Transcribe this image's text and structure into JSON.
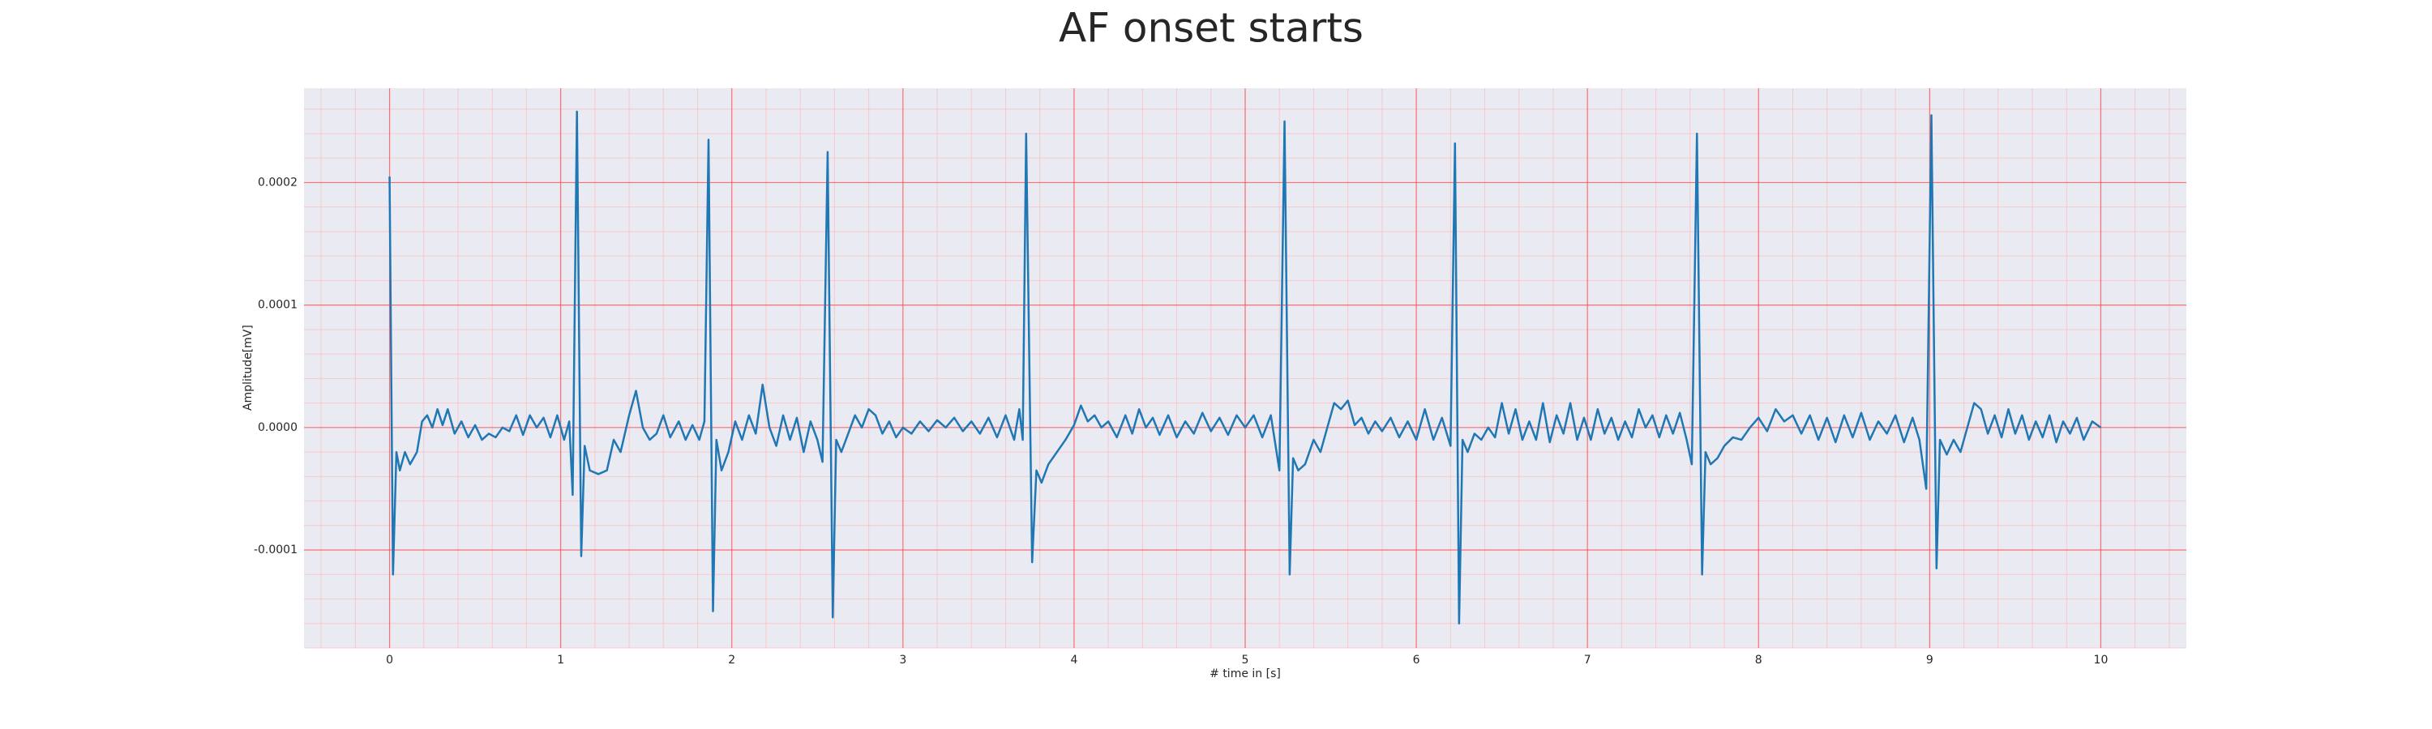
{
  "chart_data": {
    "type": "line",
    "title": "AF onset starts",
    "xlabel": "# time in [s]",
    "ylabel": "Amplitude[mV]",
    "color": "#1f77b4",
    "grid": true,
    "minor_grid": true,
    "xlim": [
      -0.5,
      10.5
    ],
    "xticks": [
      0,
      1,
      2,
      3,
      4,
      5,
      6,
      7,
      8,
      9,
      10
    ],
    "ylim": [
      -0.00018,
      0.000277
    ],
    "yticks": [
      {
        "value": -0.0001,
        "label": "-0.0001"
      },
      {
        "value": 0,
        "label": "0.0000"
      },
      {
        "value": 0.0001,
        "label": "0.0001"
      },
      {
        "value": 0.0002,
        "label": "0.0002"
      }
    ],
    "x": [
      0.0,
      0.02,
      0.04,
      0.06,
      0.09,
      0.12,
      0.16,
      0.19,
      0.22,
      0.25,
      0.28,
      0.31,
      0.34,
      0.38,
      0.42,
      0.46,
      0.5,
      0.54,
      0.58,
      0.62,
      0.66,
      0.7,
      0.74,
      0.78,
      0.82,
      0.86,
      0.9,
      0.94,
      0.98,
      1.02,
      1.05,
      1.07,
      1.095,
      1.12,
      1.14,
      1.17,
      1.22,
      1.27,
      1.31,
      1.35,
      1.4,
      1.44,
      1.48,
      1.52,
      1.56,
      1.6,
      1.64,
      1.69,
      1.73,
      1.77,
      1.81,
      1.84,
      1.864,
      1.89,
      1.91,
      1.94,
      1.98,
      2.02,
      2.06,
      2.1,
      2.14,
      2.18,
      2.22,
      2.26,
      2.3,
      2.34,
      2.38,
      2.42,
      2.46,
      2.5,
      2.53,
      2.56,
      2.59,
      2.61,
      2.64,
      2.68,
      2.72,
      2.76,
      2.8,
      2.84,
      2.88,
      2.92,
      2.96,
      3.0,
      3.05,
      3.1,
      3.15,
      3.2,
      3.25,
      3.3,
      3.35,
      3.4,
      3.45,
      3.5,
      3.55,
      3.6,
      3.65,
      3.68,
      3.7,
      3.72,
      3.755,
      3.78,
      3.81,
      3.85,
      3.9,
      3.95,
      4.0,
      4.04,
      4.08,
      4.12,
      4.16,
      4.2,
      4.25,
      4.3,
      4.34,
      4.38,
      4.42,
      4.46,
      4.5,
      4.55,
      4.6,
      4.65,
      4.7,
      4.75,
      4.8,
      4.85,
      4.9,
      4.95,
      5.0,
      5.05,
      5.1,
      5.15,
      5.2,
      5.23,
      5.26,
      5.28,
      5.31,
      5.35,
      5.4,
      5.44,
      5.48,
      5.52,
      5.56,
      5.6,
      5.64,
      5.68,
      5.72,
      5.76,
      5.8,
      5.85,
      5.9,
      5.95,
      6.0,
      6.05,
      6.1,
      6.15,
      6.2,
      6.226,
      6.25,
      6.27,
      6.3,
      6.34,
      6.38,
      6.42,
      6.46,
      6.5,
      6.54,
      6.58,
      6.62,
      6.66,
      6.7,
      6.74,
      6.78,
      6.82,
      6.86,
      6.9,
      6.94,
      6.98,
      7.02,
      7.06,
      7.1,
      7.14,
      7.18,
      7.22,
      7.26,
      7.3,
      7.34,
      7.38,
      7.42,
      7.46,
      7.5,
      7.54,
      7.58,
      7.61,
      7.64,
      7.67,
      7.69,
      7.72,
      7.76,
      7.8,
      7.85,
      7.9,
      7.95,
      8.0,
      8.05,
      8.1,
      8.15,
      8.2,
      8.25,
      8.3,
      8.35,
      8.4,
      8.45,
      8.5,
      8.55,
      8.6,
      8.65,
      8.7,
      8.75,
      8.8,
      8.85,
      8.9,
      8.94,
      8.98,
      9.01,
      9.04,
      9.06,
      9.1,
      9.14,
      9.18,
      9.22,
      9.26,
      9.3,
      9.34,
      9.38,
      9.42,
      9.46,
      9.5,
      9.54,
      9.58,
      9.62,
      9.66,
      9.7,
      9.74,
      9.78,
      9.82,
      9.86,
      9.9,
      9.95,
      10.0
    ],
    "values": [
      0.000205,
      -0.00012,
      -2e-05,
      -3.5e-05,
      -2e-05,
      -3e-05,
      -2e-05,
      5e-06,
      1e-05,
      0,
      1.5e-05,
      2e-06,
      1.5e-05,
      -5e-06,
      5e-06,
      -8e-06,
      2e-06,
      -1e-05,
      -5e-06,
      -8e-06,
      0,
      -3e-06,
      1e-05,
      -6e-06,
      1e-05,
      0,
      8e-06,
      -8e-06,
      1e-05,
      -1e-05,
      5e-06,
      -5.5e-05,
      0.000258,
      -0.000105,
      -1.5e-05,
      -3.5e-05,
      -3.8e-05,
      -3.5e-05,
      -1e-05,
      -2e-05,
      1e-05,
      3e-05,
      0,
      -1e-05,
      -5e-06,
      1e-05,
      -8e-06,
      5e-06,
      -1e-05,
      2e-06,
      -1e-05,
      5e-06,
      0.000235,
      -0.00015,
      -1e-05,
      -3.5e-05,
      -2e-05,
      5e-06,
      -1e-05,
      1e-05,
      -5e-06,
      3.5e-05,
      0,
      -1.5e-05,
      1e-05,
      -1e-05,
      8e-06,
      -2e-05,
      5e-06,
      -1e-05,
      -2.8e-05,
      0.000225,
      -0.000155,
      -1e-05,
      -2e-05,
      -5e-06,
      1e-05,
      0,
      1.5e-05,
      1e-05,
      -5e-06,
      5e-06,
      -8e-06,
      0,
      -5e-06,
      5e-06,
      -3e-06,
      6e-06,
      0,
      8e-06,
      -3e-06,
      5e-06,
      -5e-06,
      8e-06,
      -8e-06,
      1e-05,
      -1e-05,
      1.5e-05,
      -1e-05,
      0.00024,
      -0.00011,
      -3.5e-05,
      -4.5e-05,
      -3e-05,
      -2e-05,
      -1e-05,
      2e-06,
      1.8e-05,
      5e-06,
      1e-05,
      0,
      5e-06,
      -8e-06,
      1e-05,
      -5e-06,
      1.5e-05,
      0,
      8e-06,
      -6e-06,
      1e-05,
      -8e-06,
      5e-06,
      -5e-06,
      1.2e-05,
      -3e-06,
      8e-06,
      -6e-06,
      1e-05,
      0,
      1e-05,
      -8e-06,
      1e-05,
      -3.5e-05,
      0.00025,
      -0.00012,
      -2.5e-05,
      -3.5e-05,
      -3e-05,
      -1e-05,
      -2e-05,
      0,
      2e-05,
      1.5e-05,
      2.2e-05,
      2e-06,
      8e-06,
      -5e-06,
      5e-06,
      -3e-06,
      8e-06,
      -8e-06,
      5e-06,
      -1e-05,
      1.5e-05,
      -1e-05,
      8e-06,
      -1.5e-05,
      0.000232,
      -0.00016,
      -1e-05,
      -2e-05,
      -5e-06,
      -1e-05,
      0,
      -8e-06,
      2e-05,
      -5e-06,
      1.5e-05,
      -1e-05,
      5e-06,
      -1e-05,
      2e-05,
      -1.2e-05,
      1e-05,
      -5e-06,
      2e-05,
      -1e-05,
      8e-06,
      -1e-05,
      1.5e-05,
      -5e-06,
      8e-06,
      -1e-05,
      5e-06,
      -8e-06,
      1.5e-05,
      0,
      1e-05,
      -8e-06,
      1e-05,
      -5e-06,
      1.2e-05,
      -1e-05,
      -3e-05,
      0.00024,
      -0.00012,
      -2e-05,
      -3e-05,
      -2.5e-05,
      -1.5e-05,
      -8e-06,
      -1e-05,
      0,
      8e-06,
      -3e-06,
      1.5e-05,
      5e-06,
      1e-05,
      -5e-06,
      1e-05,
      -1e-05,
      8e-06,
      -1.2e-05,
      1e-05,
      -8e-06,
      1.2e-05,
      -1e-05,
      5e-06,
      -5e-06,
      1e-05,
      -1.2e-05,
      8e-06,
      -1e-05,
      -5e-05,
      0.000255,
      -0.000115,
      -1e-05,
      -2.2e-05,
      -1e-05,
      -2e-05,
      0,
      2e-05,
      1.5e-05,
      -5e-06,
      1e-05,
      -8e-06,
      1.5e-05,
      -5e-06,
      1e-05,
      -1e-05,
      5e-06,
      -8e-06,
      1e-05,
      -1.2e-05,
      5e-06,
      -5e-06,
      8e-06,
      -1e-05,
      5e-06,
      0
    ]
  }
}
